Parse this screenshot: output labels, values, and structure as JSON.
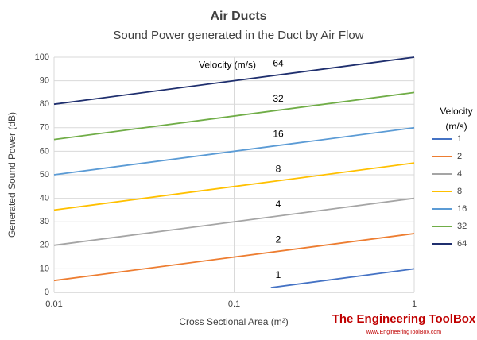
{
  "chart_data": {
    "type": "line",
    "title": "Air Ducts",
    "subtitle": "Sound Power generated in the Duct by Air Flow",
    "x_label": "Cross Sectional Area (m²)",
    "y_label": "Generated Sound Power (dB)",
    "annotation": "Velocity (m/s)",
    "legend_title": "Velocity (m/s)",
    "legend": "right",
    "grid": true,
    "xscale": "log",
    "xlim": [
      0.01,
      1
    ],
    "xticks": [
      0.01,
      0.1,
      1
    ],
    "ylim": [
      0,
      100
    ],
    "yticks": [
      0,
      10,
      20,
      30,
      40,
      50,
      60,
      70,
      80,
      90,
      100
    ],
    "x": [
      0.01,
      1
    ],
    "series": [
      {
        "name": "1",
        "color": "#4472c4",
        "x": [
          0.16,
          1
        ],
        "values": [
          2,
          10
        ]
      },
      {
        "name": "2",
        "color": "#ed7d31",
        "values": [
          5,
          25
        ]
      },
      {
        "name": "4",
        "color": "#a5a5a5",
        "values": [
          20,
          40
        ]
      },
      {
        "name": "8",
        "color": "#ffc000",
        "values": [
          35,
          55
        ]
      },
      {
        "name": "16",
        "color": "#5b9bd5",
        "values": [
          50,
          70
        ]
      },
      {
        "name": "32",
        "color": "#70ad47",
        "values": [
          65,
          85
        ]
      },
      {
        "name": "64",
        "color": "#1f2f6e",
        "values": [
          80,
          100
        ]
      }
    ],
    "source_logo": "The Engineering ToolBox",
    "source_url": "www.EngineeringToolBox.com"
  }
}
